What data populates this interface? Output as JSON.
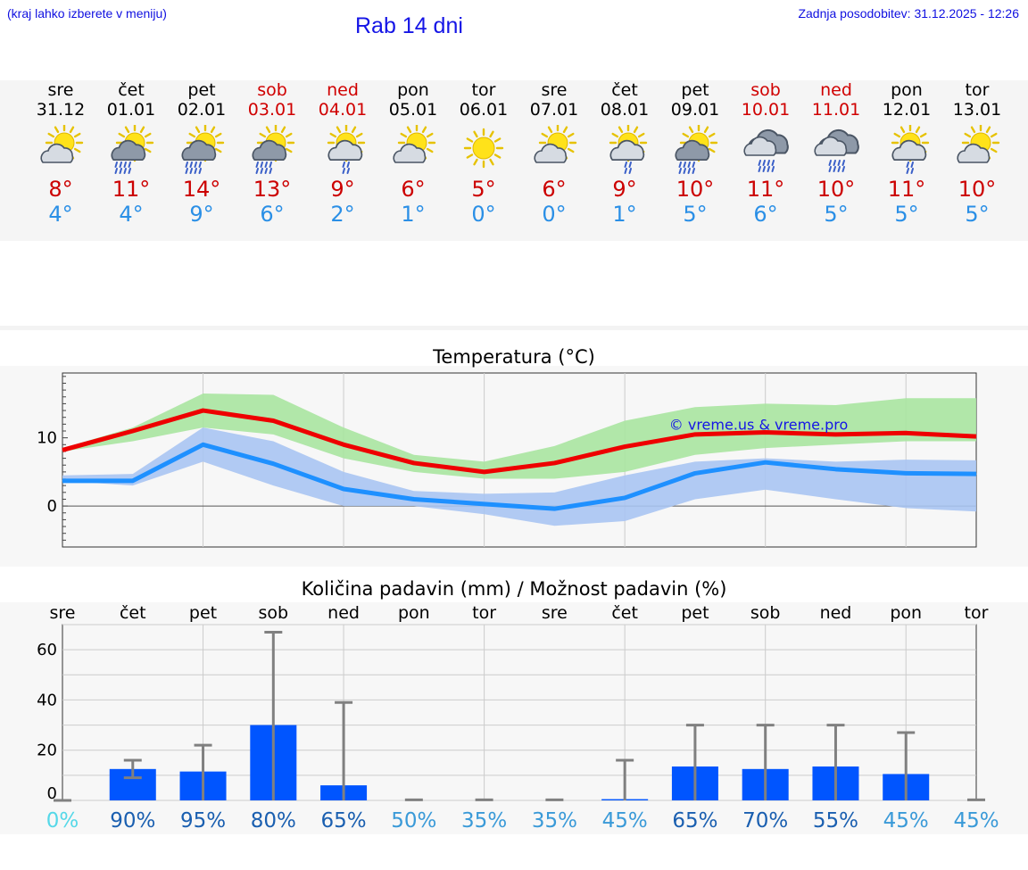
{
  "header": {
    "hint": "(kraj lahko izberete v meniju)",
    "title": "Rab 14 dni",
    "updated": "Zadnja posodobitev: 31.12.2025 - 12:26"
  },
  "days": [
    {
      "name": "sre",
      "date": "31.12",
      "weekend": false,
      "icon": "sun-partly-cloudy-icon",
      "max": "8°",
      "min": "4°"
    },
    {
      "name": "čet",
      "date": "01.01",
      "weekend": false,
      "icon": "sun-cloud-rain-icon",
      "max": "11°",
      "min": "4°"
    },
    {
      "name": "pet",
      "date": "02.01",
      "weekend": false,
      "icon": "sun-cloud-rain-icon",
      "max": "14°",
      "min": "9°"
    },
    {
      "name": "sob",
      "date": "03.01",
      "weekend": true,
      "icon": "sun-cloud-rain-icon",
      "max": "13°",
      "min": "6°"
    },
    {
      "name": "ned",
      "date": "04.01",
      "weekend": true,
      "icon": "sun-cloud-light-rain-icon",
      "max": "9°",
      "min": "2°"
    },
    {
      "name": "pon",
      "date": "05.01",
      "weekend": false,
      "icon": "sun-partly-cloudy-icon",
      "max": "6°",
      "min": "1°"
    },
    {
      "name": "tor",
      "date": "06.01",
      "weekend": false,
      "icon": "sun-icon",
      "max": "5°",
      "min": "0°"
    },
    {
      "name": "sre",
      "date": "07.01",
      "weekend": false,
      "icon": "sun-partly-cloudy-icon",
      "max": "6°",
      "min": "0°"
    },
    {
      "name": "čet",
      "date": "08.01",
      "weekend": false,
      "icon": "sun-cloud-light-rain-icon",
      "max": "9°",
      "min": "1°"
    },
    {
      "name": "pet",
      "date": "09.01",
      "weekend": false,
      "icon": "sun-cloud-rain-icon",
      "max": "10°",
      "min": "5°"
    },
    {
      "name": "sob",
      "date": "10.01",
      "weekend": true,
      "icon": "cloud-rain-icon",
      "max": "11°",
      "min": "6°"
    },
    {
      "name": "ned",
      "date": "11.01",
      "weekend": true,
      "icon": "cloud-rain-icon",
      "max": "10°",
      "min": "5°"
    },
    {
      "name": "pon",
      "date": "12.01",
      "weekend": false,
      "icon": "sun-cloud-light-rain-icon",
      "max": "11°",
      "min": "5°"
    },
    {
      "name": "tor",
      "date": "13.01",
      "weekend": false,
      "icon": "sun-partly-cloudy-icon",
      "max": "10°",
      "min": "5°"
    }
  ],
  "colors": {
    "max_line": "#ee0000",
    "min_line": "#1e90ff",
    "max_band": "#a8e4a0",
    "min_band": "#a9c4f2",
    "overlap_band": "#7cc5a8",
    "bar": "#0055ff",
    "error_bar": "#808080",
    "weekend": "#d00000"
  },
  "chart_data": [
    {
      "type": "line",
      "title": "Temperatura (°C)",
      "x": [
        0,
        1,
        2,
        3,
        4,
        5,
        6,
        7,
        8,
        9,
        10,
        11,
        12,
        13
      ],
      "ylim": [
        -6,
        19.5
      ],
      "yticks": [
        0,
        10
      ],
      "watermark": "© vreme.us & vreme.pro",
      "series": [
        {
          "name": "max",
          "values": [
            8.2,
            11,
            14,
            12.5,
            9,
            6.3,
            5,
            6.3,
            8.7,
            10.5,
            10.8,
            10.5,
            10.7,
            10.2
          ]
        },
        {
          "name": "min",
          "values": [
            3.7,
            3.7,
            9,
            6.2,
            2.5,
            1,
            0.3,
            -0.4,
            1.2,
            4.8,
            6.4,
            5.4,
            4.8,
            4.7
          ]
        }
      ],
      "bands": [
        {
          "name": "max_range",
          "low": [
            8,
            9.5,
            11.5,
            10.5,
            7,
            5,
            4,
            4,
            5,
            7.5,
            8.5,
            9,
            9.5,
            9.5
          ],
          "high": [
            8.5,
            11.5,
            16.5,
            16.3,
            11.5,
            7.5,
            6.5,
            8.8,
            12.5,
            14.5,
            15,
            14.8,
            15.8,
            15.8
          ]
        },
        {
          "name": "min_range",
          "low": [
            3.7,
            3,
            6.5,
            3,
            0,
            0,
            -1.2,
            -2.9,
            -2.2,
            1,
            2.4,
            1,
            -0.3,
            -0.8
          ],
          "high": [
            4.5,
            4.7,
            11.5,
            9.5,
            5,
            2.2,
            1.8,
            2,
            4.5,
            6.5,
            7,
            6.5,
            6.8,
            6.7
          ]
        }
      ]
    },
    {
      "type": "bar",
      "title": "Količina padavin (mm) / Možnost padavin (%)",
      "categories": [
        "sre",
        "čet",
        "pet",
        "sob",
        "ned",
        "pon",
        "tor",
        "sre",
        "čet",
        "pet",
        "sob",
        "ned",
        "pon",
        "tor"
      ],
      "values": [
        0,
        12.5,
        11.5,
        30,
        6,
        0,
        0,
        0,
        0.5,
        13.5,
        12.5,
        13.5,
        10.5,
        0
      ],
      "err_low": [
        0,
        9,
        0,
        0,
        0,
        0,
        0,
        0,
        0,
        0,
        0,
        0,
        0,
        0
      ],
      "err_high": [
        0,
        16,
        22,
        67,
        39,
        0.2,
        0.2,
        0.2,
        16,
        30,
        30,
        30,
        27,
        0.2
      ],
      "ylim": [
        0,
        70
      ],
      "yticks": [
        0,
        20,
        40,
        60
      ],
      "probabilities": [
        "0%",
        "90%",
        "95%",
        "80%",
        "65%",
        "50%",
        "35%",
        "35%",
        "45%",
        "65%",
        "70%",
        "55%",
        "45%",
        "45%"
      ],
      "prob_colors": [
        "#55d8e8",
        "#1a5fb0",
        "#1a5fb0",
        "#1a5fb0",
        "#1a5fb0",
        "#3a9ad8",
        "#3a9ad8",
        "#3a9ad8",
        "#3a9ad8",
        "#1a5fb0",
        "#1a5fb0",
        "#1a5fb0",
        "#3a9ad8",
        "#3a9ad8"
      ]
    }
  ]
}
